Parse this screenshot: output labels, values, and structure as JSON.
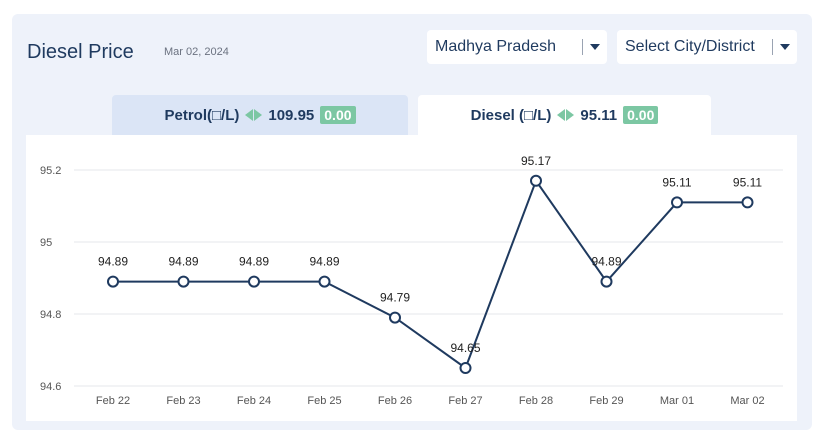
{
  "header": {
    "title": "Diesel Price",
    "date": "Mar 02, 2024"
  },
  "filters": {
    "state": "Madhya Pradesh",
    "city": "Select City/District"
  },
  "tabs": [
    {
      "fuel": "Petrol(□/L)",
      "price": "109.95",
      "change": "0.00"
    },
    {
      "fuel": "Diesel (□/L)",
      "price": "95.11",
      "change": "0.00"
    }
  ],
  "colors": {
    "line": "#1f3a5f",
    "badge": "#7cc7a3",
    "grid": "#e5e7eb"
  },
  "chart_data": {
    "type": "line",
    "categories": [
      "Feb 22",
      "Feb 23",
      "Feb 24",
      "Feb 25",
      "Feb 26",
      "Feb 27",
      "Feb 28",
      "Feb 29",
      "Mar 01",
      "Mar 02"
    ],
    "values": [
      94.89,
      94.89,
      94.89,
      94.89,
      94.79,
      94.65,
      95.17,
      94.89,
      95.11,
      95.11
    ],
    "value_labels": [
      "94.89",
      "94.89",
      "94.89",
      "94.89",
      "94.79",
      "94.65",
      "95.17",
      "94.89",
      "95.11",
      "95.11"
    ],
    "ylim": [
      94.6,
      95.2
    ],
    "yticks": [
      "94.6",
      "94.8",
      "95",
      "95.2"
    ],
    "ytick_values": [
      94.6,
      94.8,
      95,
      95.2
    ],
    "grid": true,
    "legend": "none"
  }
}
